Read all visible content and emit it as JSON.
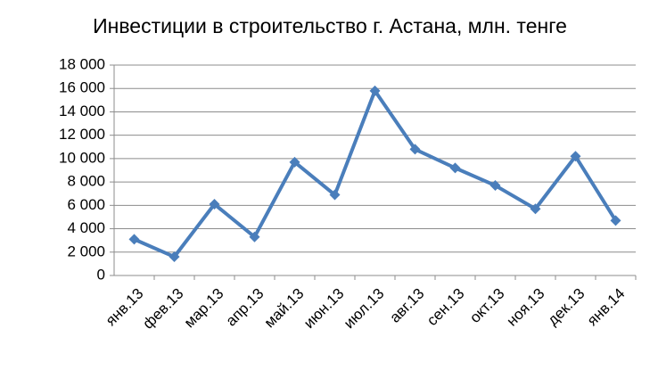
{
  "chart_data": {
    "type": "line",
    "title": "Инвестиции в строительство г. Астана, млн. тенге",
    "categories": [
      "янв.13",
      "фев.13",
      "мар.13",
      "апр.13",
      "май.13",
      "июн.13",
      "июл.13",
      "авг.13",
      "сен.13",
      "окт.13",
      "ноя.13",
      "дек.13",
      "янв.14"
    ],
    "values": [
      3100,
      1600,
      6100,
      3300,
      9700,
      6900,
      15800,
      10800,
      9200,
      7700,
      5700,
      10200,
      4700
    ],
    "color": "#4a7ebb",
    "ylim": [
      0,
      18000
    ],
    "yticks": [
      0,
      {
        "value": 2000,
        "label": "2 000"
      },
      {
        "value": 4000,
        "label": "4 000"
      },
      {
        "value": 6000,
        "label": "6 000"
      },
      {
        "value": 8000,
        "label": "8 000"
      },
      {
        "value": 10000,
        "label": "10 000"
      },
      {
        "value": 12000,
        "label": "12 000"
      },
      {
        "value": 14000,
        "label": "14 000"
      },
      {
        "value": 16000,
        "label": "16 000"
      },
      {
        "value": 18000,
        "label": "18 000"
      }
    ],
    "grid": true
  }
}
